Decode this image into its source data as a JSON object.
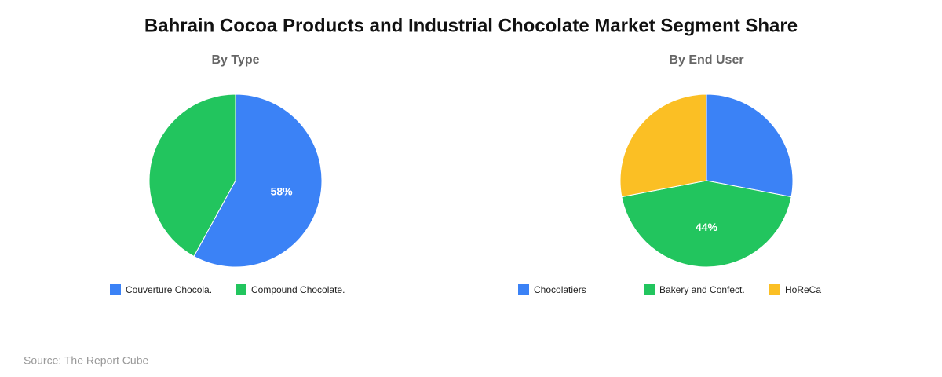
{
  "title": "Bahrain Cocoa Products and Industrial Chocolate Market Segment Share",
  "source": "Source: The Report Cube",
  "chart_data": [
    {
      "type": "pie",
      "title": "By Type",
      "categories": [
        "Couverture Chocola.",
        "Compound Chocolate."
      ],
      "values": [
        58,
        42
      ],
      "value_labels": [
        "58%",
        null
      ],
      "colors": [
        "#3b82f6",
        "#22c55e"
      ]
    },
    {
      "type": "pie",
      "title": "By End User",
      "categories": [
        "Chocolatiers",
        "Bakery and Confect.",
        "HoReCa"
      ],
      "values": [
        28,
        44,
        28
      ],
      "value_labels": [
        null,
        "44%",
        null
      ],
      "colors": [
        "#3b82f6",
        "#22c55e",
        "#fbbf24"
      ]
    }
  ]
}
